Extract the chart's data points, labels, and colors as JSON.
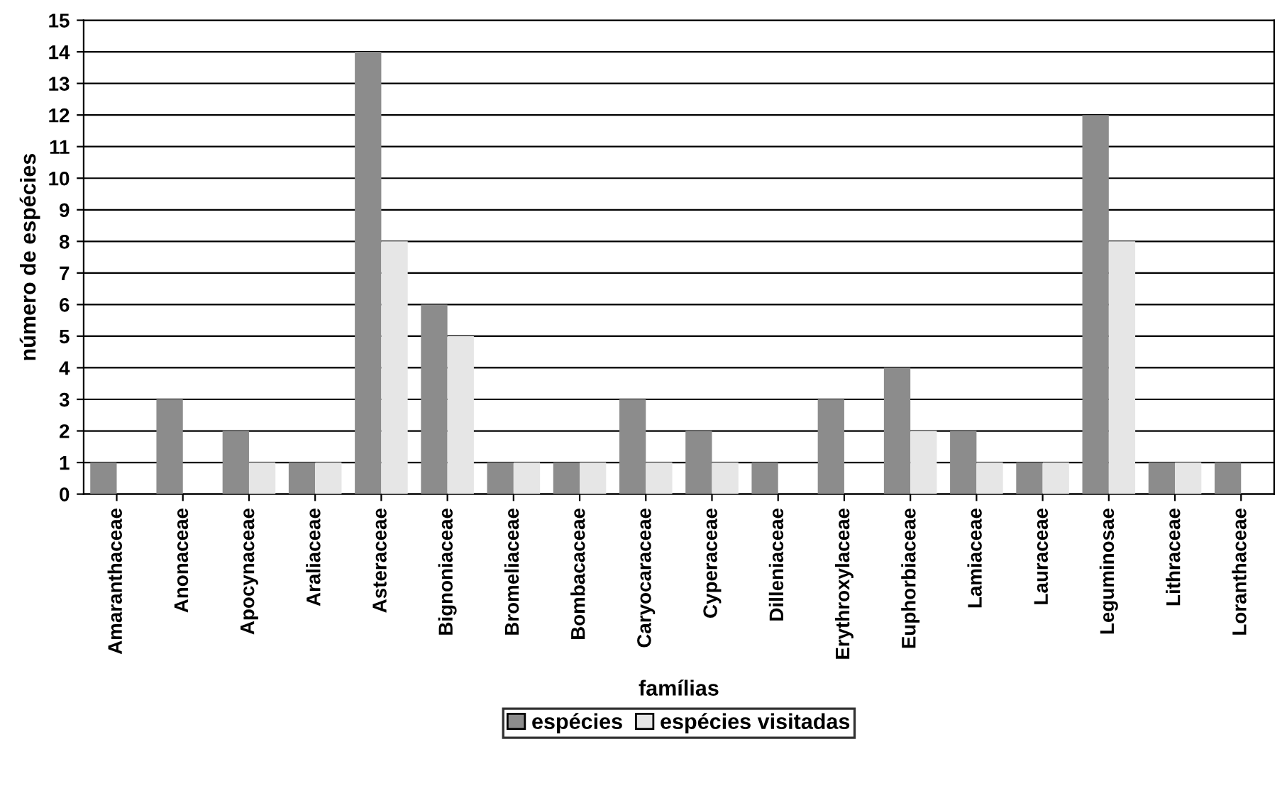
{
  "chart_data": {
    "type": "bar",
    "xlabel": "famílias",
    "ylabel": "número de espécies",
    "categories": [
      "Amaranthaceae",
      "Anonaceae",
      "Apocynaceae",
      "Araliaceae",
      "Asteraceae",
      "Bignoniaceae",
      "Bromeliaceae",
      "Bombacaceae",
      "Caryocaraceae",
      "Cyperaceae",
      "Dilleniaceae",
      "Erythroxylaceae",
      "Euphorbiaceae",
      "Lamiaceae",
      "Lauraceae",
      "Leguminosae",
      "Lithraceae",
      "Loranthaceae"
    ],
    "series": [
      {
        "name": "espécies",
        "color": "#8c8c8c",
        "values": [
          1,
          3,
          2,
          1,
          14,
          6,
          1,
          1,
          3,
          2,
          1,
          3,
          4,
          2,
          1,
          12,
          1,
          1
        ]
      },
      {
        "name": "espécies visitadas",
        "color": "#e6e6e6",
        "values": [
          0,
          0,
          1,
          1,
          8,
          5,
          1,
          1,
          1,
          1,
          0,
          0,
          2,
          1,
          1,
          8,
          1,
          0
        ]
      }
    ],
    "ylim": [
      0,
      15
    ],
    "yticks": [
      0,
      1,
      2,
      3,
      4,
      5,
      6,
      7,
      8,
      9,
      10,
      11,
      12,
      13,
      14,
      15
    ],
    "grid": "y",
    "legend": "bottom"
  }
}
